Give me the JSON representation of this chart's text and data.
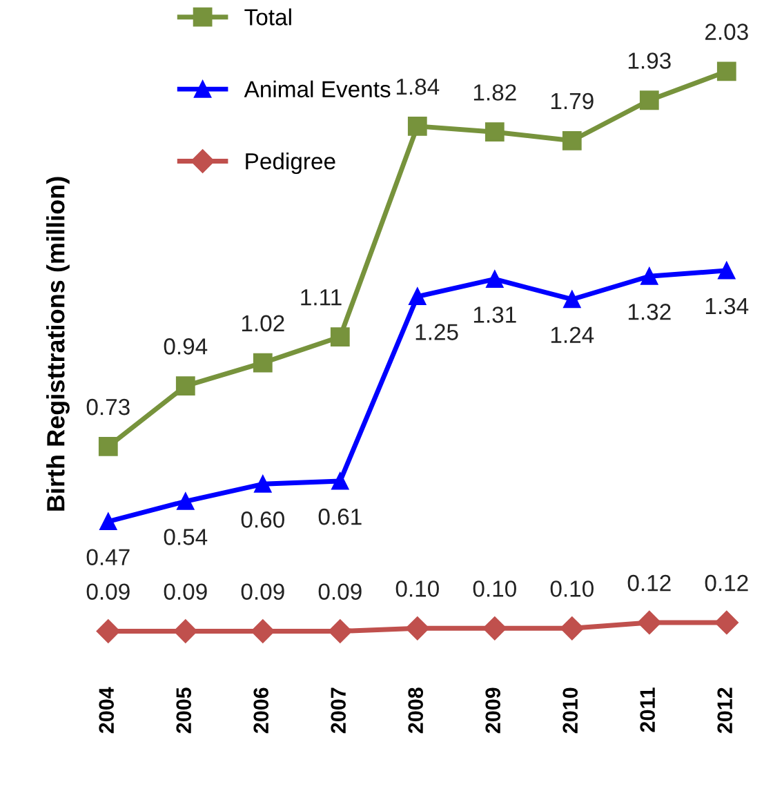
{
  "chart_data": {
    "type": "line",
    "ylabel": "Birth Registtrations (million)",
    "categories": [
      "2004",
      "2005",
      "2006",
      "2007",
      "2008",
      "2009",
      "2010",
      "2011",
      "2012"
    ],
    "series": [
      {
        "name": "Total",
        "color": "#77933c",
        "marker": "square",
        "values": [
          0.73,
          0.94,
          1.02,
          1.11,
          1.84,
          1.82,
          1.79,
          1.93,
          2.03
        ],
        "value_labels": [
          "0.73",
          "0.94",
          "1.02",
          "1.11",
          "1.84",
          "1.82",
          "1.79",
          "1.93",
          "2.03"
        ]
      },
      {
        "name": "Animal Events",
        "color": "#0000ff",
        "marker": "triangle",
        "values": [
          0.47,
          0.54,
          0.6,
          0.61,
          1.25,
          1.31,
          1.24,
          1.32,
          1.34
        ],
        "value_labels": [
          "0.47",
          "0.54",
          "0.60",
          "0.61",
          "1.25",
          "1.31",
          "1.24",
          "1.32",
          "1.34"
        ]
      },
      {
        "name": "Pedigree",
        "color": "#c0504d",
        "marker": "diamond",
        "values": [
          0.09,
          0.09,
          0.09,
          0.09,
          0.1,
          0.1,
          0.1,
          0.12,
          0.12
        ],
        "value_labels": [
          "0.09",
          "0.09",
          "0.09",
          "0.09",
          "0.10",
          "0.10",
          "0.10",
          "0.12",
          "0.12"
        ]
      }
    ],
    "legend": "top left"
  }
}
